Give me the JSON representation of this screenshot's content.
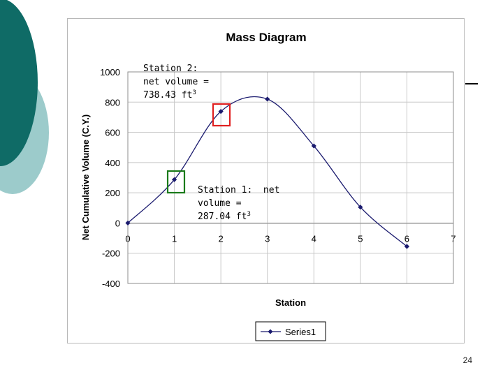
{
  "slide": {
    "page_number": "24"
  },
  "colors": {
    "teal_dark": "#0f6b66",
    "teal_light": "#9ccbcb",
    "series": "#1a1a6e",
    "box_station2": "#e02020",
    "box_station1": "#1a7a1a"
  },
  "annotations": {
    "station2": {
      "line1": "Station 2:",
      "line2": "net volume =",
      "line3": "738.43 ft",
      "sup": "3"
    },
    "station1": {
      "line1": "Station 1:  net",
      "line2": "volume =",
      "line3": "287.04 ft",
      "sup": "3"
    }
  },
  "chart_data": {
    "type": "line",
    "title": "Mass Diagram",
    "xlabel": "Station",
    "ylabel": "Net Cumulative Volume (C.Y.)",
    "xlim": [
      0,
      7
    ],
    "ylim": [
      -400,
      1000
    ],
    "x_ticks": [
      "0",
      "1",
      "2",
      "3",
      "4",
      "5",
      "6",
      "7"
    ],
    "y_ticks": [
      "1000",
      "800",
      "600",
      "400",
      "200",
      "0",
      "-200",
      "-400"
    ],
    "grid": true,
    "legend": "bottom",
    "series": [
      {
        "name": "Series1",
        "x": [
          0,
          1,
          2,
          3,
          4,
          5,
          6
        ],
        "values": [
          0,
          287.04,
          738.43,
          820,
          510,
          105,
          -155
        ]
      }
    ]
  }
}
